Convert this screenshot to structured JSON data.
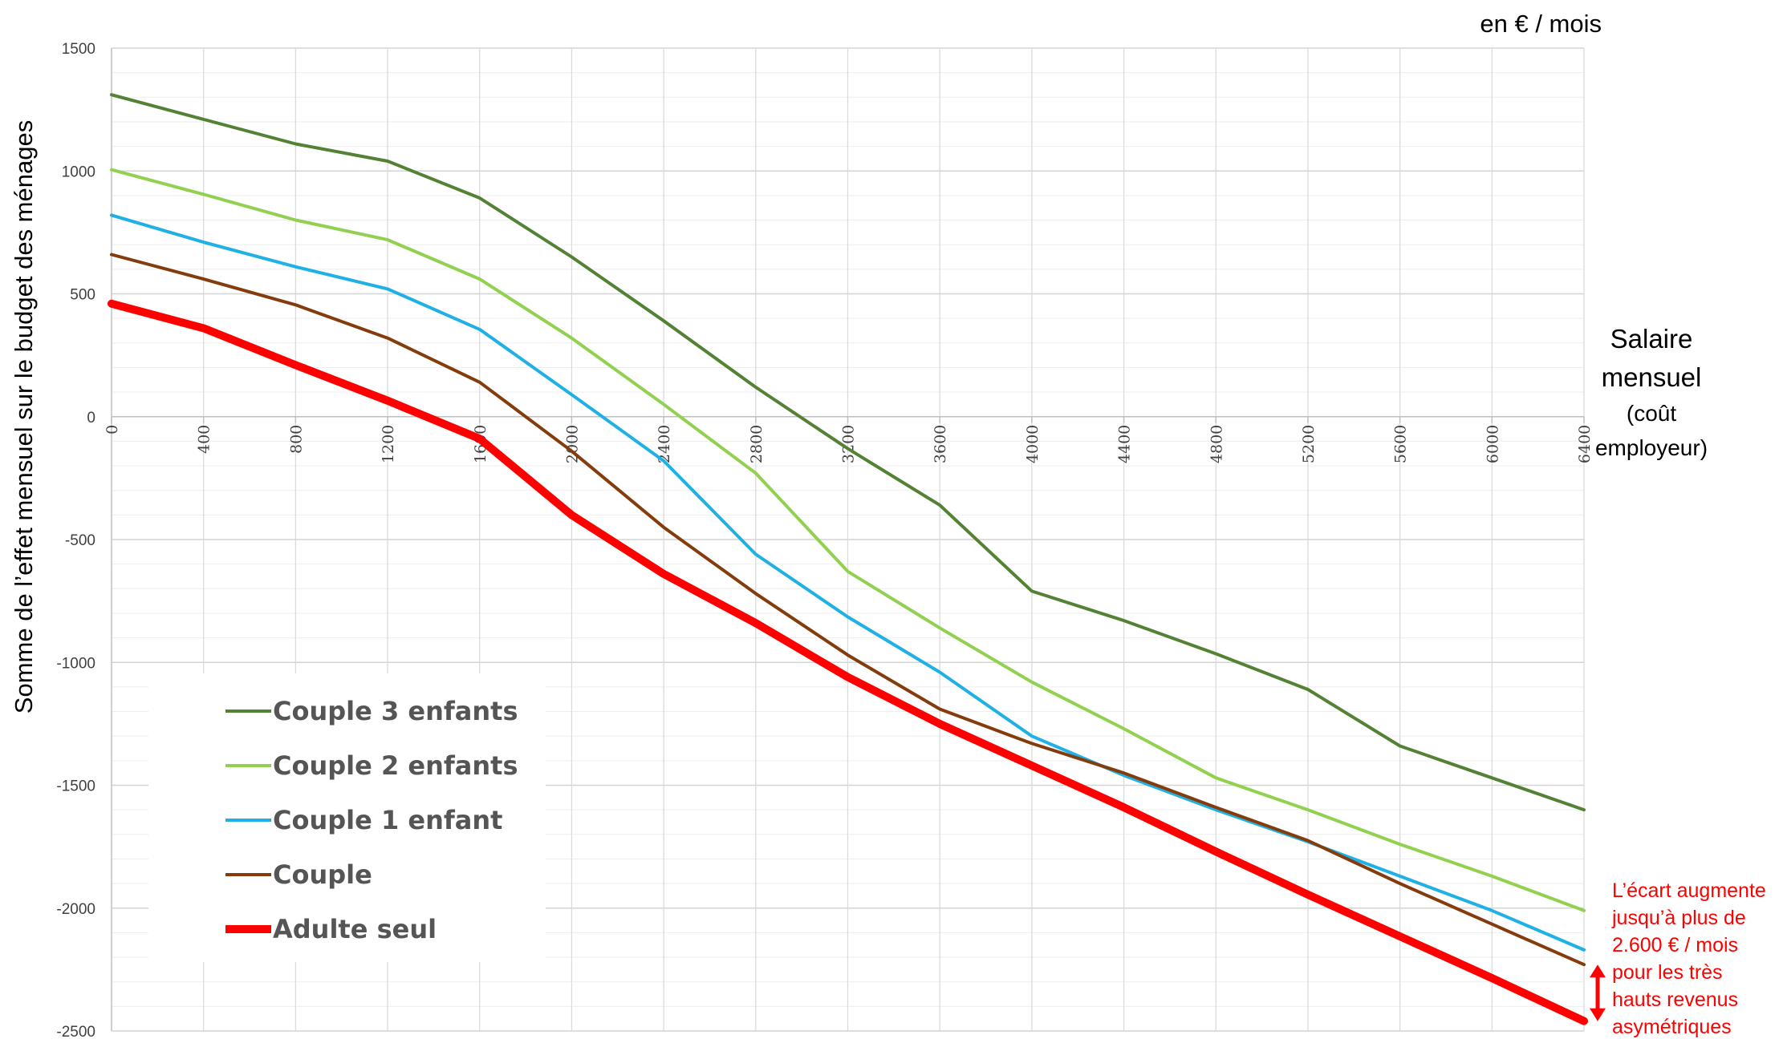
{
  "chart_data": {
    "type": "line",
    "unit_label": "en € / mois",
    "ylabel": "Somme de l’effet mensuel sur le budget des ménages",
    "xlabel": [
      "Salaire",
      "mensuel",
      "(coût",
      "employeur)"
    ],
    "xlim": [
      0,
      6400
    ],
    "ylim": [
      -2500,
      1500
    ],
    "grid": true,
    "legend_position": "bottom-left",
    "x_ticks": [
      0,
      400,
      800,
      1200,
      1600,
      2000,
      2400,
      2800,
      3200,
      3600,
      4000,
      4400,
      4800,
      5200,
      5600,
      6000,
      6400
    ],
    "y_ticks": [
      1500,
      1000,
      500,
      0,
      -500,
      -1000,
      -1500,
      -2000,
      -2500
    ],
    "x": [
      0,
      400,
      800,
      1200,
      1600,
      2000,
      2400,
      2800,
      3200,
      3600,
      4000,
      4400,
      4800,
      5200,
      5600,
      6000,
      6400
    ],
    "series": [
      {
        "name": "Couple 3 enfants",
        "color": "#548235",
        "width": 4,
        "values": [
          1310,
          1210,
          1110,
          1040,
          890,
          650,
          390,
          120,
          -130,
          -360,
          -710,
          -830,
          -965,
          -1110,
          -1340,
          -1470,
          -1600
        ]
      },
      {
        "name": "Couple 2 enfants",
        "color": "#92d050",
        "width": 4,
        "values": [
          1005,
          905,
          800,
          720,
          560,
          320,
          50,
          -230,
          -630,
          -860,
          -1080,
          -1270,
          -1470,
          -1600,
          -1740,
          -1870,
          -2010
        ]
      },
      {
        "name": "Couple 1 enfant",
        "color": "#1fb0e6",
        "width": 4,
        "values": [
          820,
          710,
          610,
          520,
          355,
          90,
          -180,
          -560,
          -815,
          -1040,
          -1300,
          -1460,
          -1600,
          -1730,
          -1870,
          -2010,
          -2170
        ]
      },
      {
        "name": "Couple",
        "color": "#843c0c",
        "width": 4,
        "values": [
          660,
          560,
          455,
          320,
          140,
          -140,
          -450,
          -720,
          -970,
          -1190,
          -1330,
          -1450,
          -1590,
          -1725,
          -1900,
          -2065,
          -2230
        ]
      },
      {
        "name": "Adulte seul",
        "color": "#ff0000",
        "width": 10,
        "values": [
          460,
          360,
          210,
          65,
          -90,
          -400,
          -640,
          -840,
          -1060,
          -1250,
          -1420,
          -1590,
          -1770,
          -1945,
          -2115,
          -2285,
          -2460
        ]
      }
    ],
    "annotation": {
      "lines": [
        "L’écart augmente",
        "jusqu’à plus de",
        "2.600 € / mois",
        "pour les très",
        "hauts revenus",
        "asymétriques"
      ],
      "color": "#ff0000",
      "arrow_from": -2230,
      "arrow_to": -2460
    }
  }
}
